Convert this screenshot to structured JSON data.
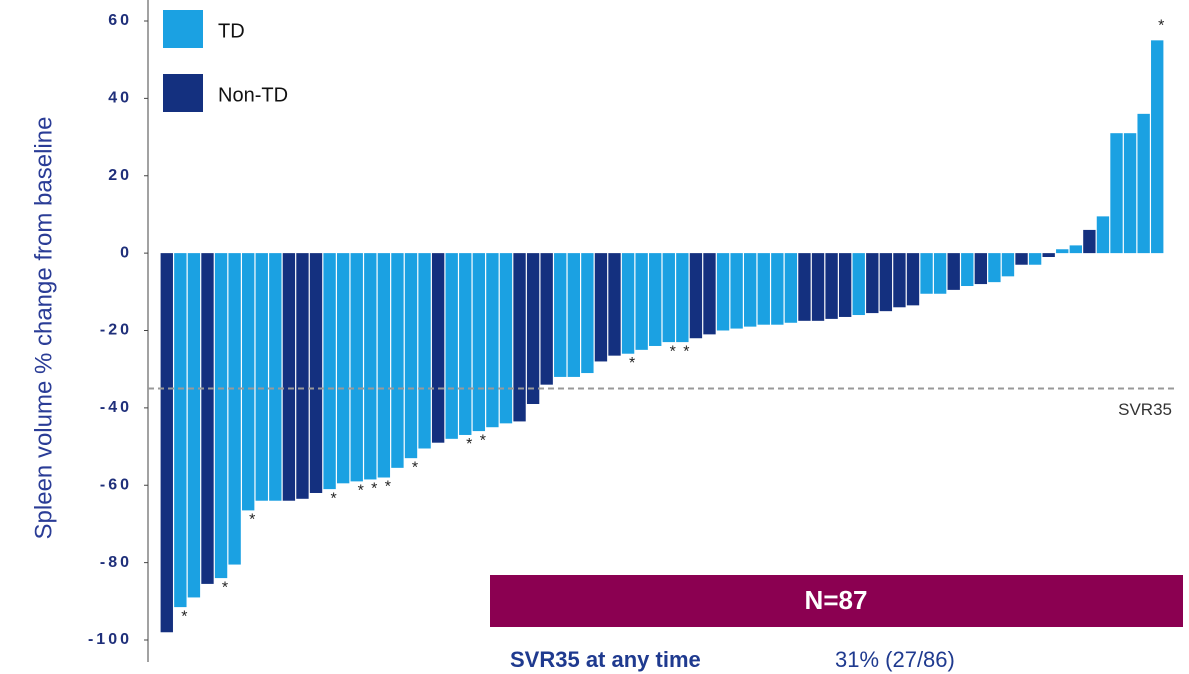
{
  "chart_data": {
    "type": "bar",
    "y_label": "Spleen volume % change from baseline",
    "ylim": [
      -100,
      60
    ],
    "yticks": [
      -100,
      -80,
      -60,
      -40,
      -20,
      0,
      20,
      40,
      60
    ],
    "series": [
      {
        "name": "TD",
        "color": "#1ba1e2",
        "values": [
          null,
          -91.5,
          -89,
          null,
          -84,
          -80.5,
          -66.5,
          -64,
          -64,
          null,
          null,
          null,
          -61,
          -59.5,
          -59,
          -58.5,
          -58,
          -55.5,
          -53,
          -50.5,
          null,
          -48,
          -47,
          -46,
          -45,
          -44,
          null,
          null,
          null,
          -32,
          -32,
          -31,
          null,
          null,
          -26,
          -25,
          -24,
          -23,
          -23,
          null,
          null,
          -20,
          -19.5,
          -19,
          -18.5,
          -18.5,
          -18,
          null,
          null,
          null,
          null,
          -16,
          null,
          null,
          null,
          null,
          -10.5,
          -10.5,
          null,
          -8.5,
          null,
          -7.5,
          -6,
          null,
          -3,
          null,
          1,
          2,
          null,
          9.5,
          31,
          31,
          36,
          55
        ]
      },
      {
        "name": "Non-TD",
        "color": "#14307f",
        "values": [
          -98,
          null,
          null,
          -85.5,
          null,
          null,
          null,
          null,
          null,
          -64,
          -63.5,
          -62,
          null,
          null,
          null,
          null,
          null,
          null,
          null,
          null,
          -49,
          null,
          null,
          null,
          null,
          null,
          -43.5,
          -39,
          -34,
          null,
          null,
          null,
          -28,
          -26.5,
          null,
          null,
          null,
          null,
          null,
          -22,
          -21,
          null,
          null,
          null,
          null,
          null,
          null,
          -17.5,
          -17.5,
          -17,
          -16.5,
          null,
          -15.5,
          -15,
          -14,
          -13.5,
          null,
          null,
          -9.5,
          null,
          -8,
          null,
          null,
          -3,
          null,
          -1,
          null,
          null,
          6,
          null,
          null,
          null,
          null,
          null
        ]
      }
    ],
    "flags": [
      null,
      "*",
      null,
      null,
      "*",
      null,
      "*",
      null,
      null,
      null,
      null,
      null,
      "*",
      null,
      "*",
      "*",
      "*",
      null,
      "*",
      null,
      null,
      null,
      "*",
      "*",
      null,
      null,
      null,
      null,
      null,
      null,
      null,
      null,
      null,
      null,
      "*",
      null,
      null,
      "*",
      "*",
      null,
      null,
      null,
      null,
      null,
      null,
      null,
      null,
      null,
      null,
      null,
      null,
      null,
      null,
      null,
      null,
      null,
      null,
      null,
      null,
      null,
      null,
      null,
      null,
      null,
      null,
      null,
      null,
      null,
      null,
      null,
      null,
      null,
      null,
      "*"
    ],
    "threshold": {
      "value": -35,
      "label": "SVR35"
    },
    "summary": {
      "header": "N=87",
      "label": "SVR35 at any time",
      "value_text": "31% (27/86)"
    }
  }
}
